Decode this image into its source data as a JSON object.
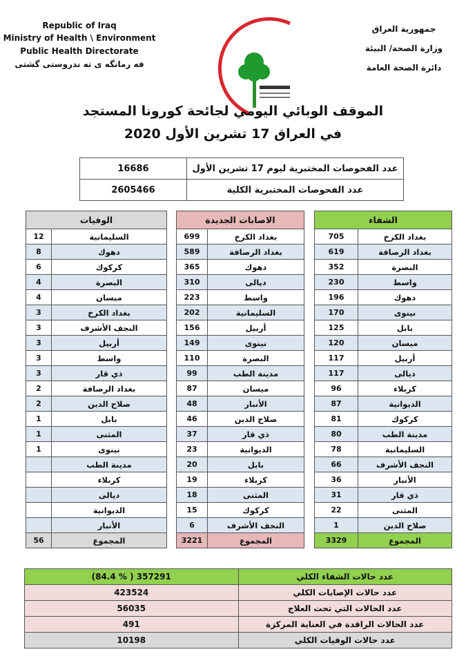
{
  "header": {
    "english": [
      "Republic of Iraq",
      "Ministry of Health \\ Environment",
      "Public Health Directorate",
      "فه رمانگه ى ته ندروستى گشتى"
    ],
    "arabic": [
      "جمهورية العراق",
      "وزارة الصحة/ البيئة",
      "دائرة الصحة العامة"
    ],
    "logo_text": "وزارة الصحة العراقية Iraqi Ministry of Health"
  },
  "title": {
    "line1": "الموقف الوبائي اليومي لجائحة كورونا المستجد",
    "line2": "في العراق  17  تشرين الأول 2020"
  },
  "tests": [
    {
      "label": "عدد الفحوصات المختبرية  ليوم 17 تشرين الأول",
      "value": "16686"
    },
    {
      "label": "عدد الفحوصات المختبرية الكلية",
      "value": "2605466"
    }
  ],
  "colors": {
    "recovery": "#92d050",
    "new_cases": "#e6b8b7",
    "deaths": "#d9d9d9",
    "row_alt": "#dce6f1",
    "pink_row": "#f2dcdb"
  },
  "recovery": {
    "header": "الشفاء",
    "total_label": "المجموع",
    "total": "3329",
    "rows": [
      [
        "بغداد الكرخ",
        "705"
      ],
      [
        "بغداد الرصافة",
        "619"
      ],
      [
        "البصرة",
        "352"
      ],
      [
        "واسط",
        "230"
      ],
      [
        "دهوك",
        "196"
      ],
      [
        "نينوى",
        "170"
      ],
      [
        "بابل",
        "125"
      ],
      [
        "ميسان",
        "120"
      ],
      [
        "أربيل",
        "117"
      ],
      [
        "ديالى",
        "117"
      ],
      [
        "كربلاء",
        "96"
      ],
      [
        "الديوانية",
        "87"
      ],
      [
        "كركوك",
        "81"
      ],
      [
        "مدينة الطب",
        "80"
      ],
      [
        "السليمانية",
        "78"
      ],
      [
        "النجف الأشرف",
        "66"
      ],
      [
        "الأنبار",
        "36"
      ],
      [
        "ذي قار",
        "31"
      ],
      [
        "المثنى",
        "22"
      ],
      [
        "صلاح الدين",
        "1"
      ]
    ]
  },
  "new_cases": {
    "header": "الاصابات الجديدة",
    "total_label": "المجموع",
    "total": "3221",
    "rows": [
      [
        "بغداد الكرخ",
        "699"
      ],
      [
        "بغداد الرصافة",
        "589"
      ],
      [
        "دهوك",
        "365"
      ],
      [
        "ديالى",
        "310"
      ],
      [
        "واسط",
        "223"
      ],
      [
        "السليمانية",
        "202"
      ],
      [
        "أربيل",
        "156"
      ],
      [
        "نينوى",
        "149"
      ],
      [
        "البصرة",
        "110"
      ],
      [
        "مدينة الطب",
        "99"
      ],
      [
        "ميسان",
        "87"
      ],
      [
        "الأنبار",
        "48"
      ],
      [
        "صلاح الدين",
        "46"
      ],
      [
        "ذي قار",
        "37"
      ],
      [
        "الديوانية",
        "23"
      ],
      [
        "بابل",
        "20"
      ],
      [
        "كربلاء",
        "19"
      ],
      [
        "المثنى",
        "18"
      ],
      [
        "كركوك",
        "15"
      ],
      [
        "النجف الأشرف",
        "6"
      ]
    ]
  },
  "deaths": {
    "header": "الوفيات",
    "total_label": "المجموع",
    "total": "56",
    "rows": [
      [
        "السليمانية",
        "12"
      ],
      [
        "دهوك",
        "8"
      ],
      [
        "كركوك",
        "6"
      ],
      [
        "البصرة",
        "4"
      ],
      [
        "ميسان",
        "4"
      ],
      [
        "بغداد الكرخ",
        "3"
      ],
      [
        "النجف الأشرف",
        "3"
      ],
      [
        "أربيل",
        "3"
      ],
      [
        "واسط",
        "3"
      ],
      [
        "ذي قار",
        "3"
      ],
      [
        "بغداد الرصافة",
        "2"
      ],
      [
        "صلاح الدين",
        "2"
      ],
      [
        "بابل",
        "1"
      ],
      [
        "المثنى",
        "1"
      ],
      [
        "نينوى",
        "1"
      ],
      [
        "مدينة الطب",
        ""
      ],
      [
        "كربلاء",
        ""
      ],
      [
        "ديالى",
        ""
      ],
      [
        "الديوانية",
        ""
      ],
      [
        "الأنبار",
        ""
      ]
    ]
  },
  "summary": [
    {
      "label": "عدد حالات الشفاء الكلي",
      "value": "(84.4 % )   357291",
      "color": "#92d050"
    },
    {
      "label": "عدد حالات الإصابات الكلي",
      "value": "423524",
      "color": "#f2dcdb"
    },
    {
      "label": "عدد الحالات التي تحت العلاج",
      "value": "56035",
      "color": "#f2dcdb"
    },
    {
      "label": "عدد الحالات الراقدة في العناية المركزة",
      "value": "491",
      "color": "#f2dcdb"
    },
    {
      "label": "عدد حالات الوفيات الكلي",
      "value": "10198",
      "color": "#d9d9d9"
    }
  ]
}
